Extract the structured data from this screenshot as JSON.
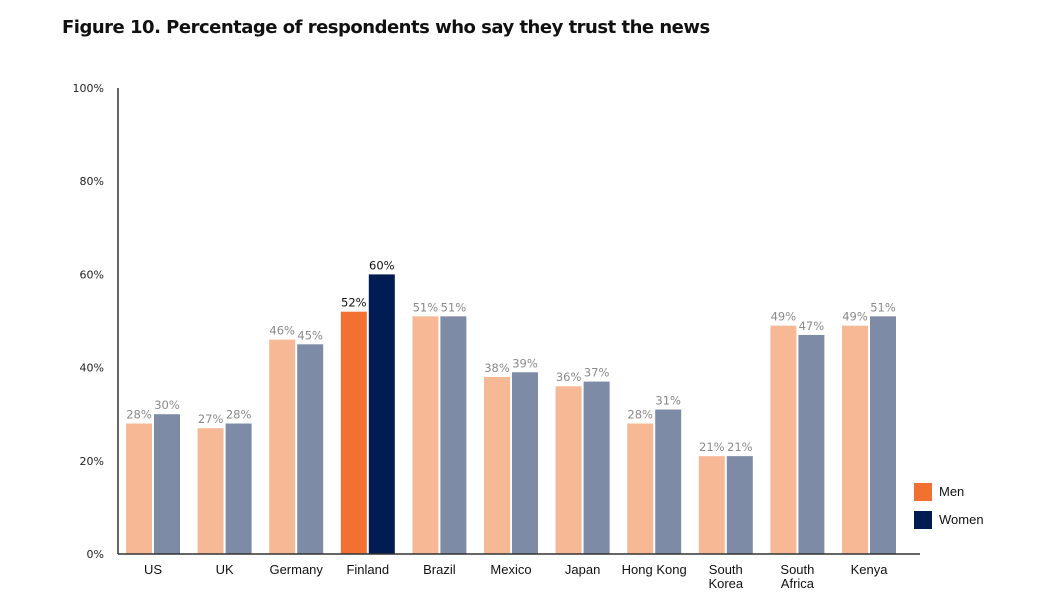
{
  "chart_data": {
    "type": "bar",
    "title": "Figure 10. Percentage of respondents who say they trust the news",
    "xlabel": "",
    "ylabel": "",
    "ylim": [
      0,
      100
    ],
    "yticks": [
      0,
      20,
      40,
      60,
      80,
      100
    ],
    "ytick_labels": [
      "0%",
      "20%",
      "40%",
      "60%",
      "80%",
      "100%"
    ],
    "grid": false,
    "legend_position": "bottom-right",
    "categories": [
      "US",
      "UK",
      "Germany",
      "Finland",
      "Brazil",
      "Mexico",
      "Japan",
      "Hong Kong",
      "South Korea",
      "South Africa",
      "Kenya"
    ],
    "category_labels": [
      [
        "US"
      ],
      [
        "UK"
      ],
      [
        "Germany"
      ],
      [
        "Finland"
      ],
      [
        "Brazil"
      ],
      [
        "Mexico"
      ],
      [
        "Japan"
      ],
      [
        "Hong Kong"
      ],
      [
        "South",
        "Korea"
      ],
      [
        "South",
        "Africa"
      ],
      [
        "Kenya"
      ]
    ],
    "highlighted_category": "Finland",
    "series": [
      {
        "name": "Men",
        "values": [
          28,
          27,
          46,
          52,
          51,
          38,
          36,
          28,
          21,
          49,
          49
        ],
        "color": "#f37130",
        "muted_color": "#f7b995"
      },
      {
        "name": "Women",
        "values": [
          30,
          28,
          45,
          60,
          51,
          39,
          37,
          31,
          21,
          47,
          51
        ],
        "color": "#001c52",
        "muted_color": "#7e8ba6"
      }
    ],
    "value_label_suffix": "%",
    "label_colors": {
      "muted": "#8a8a8a",
      "highlight": "#111111"
    }
  }
}
